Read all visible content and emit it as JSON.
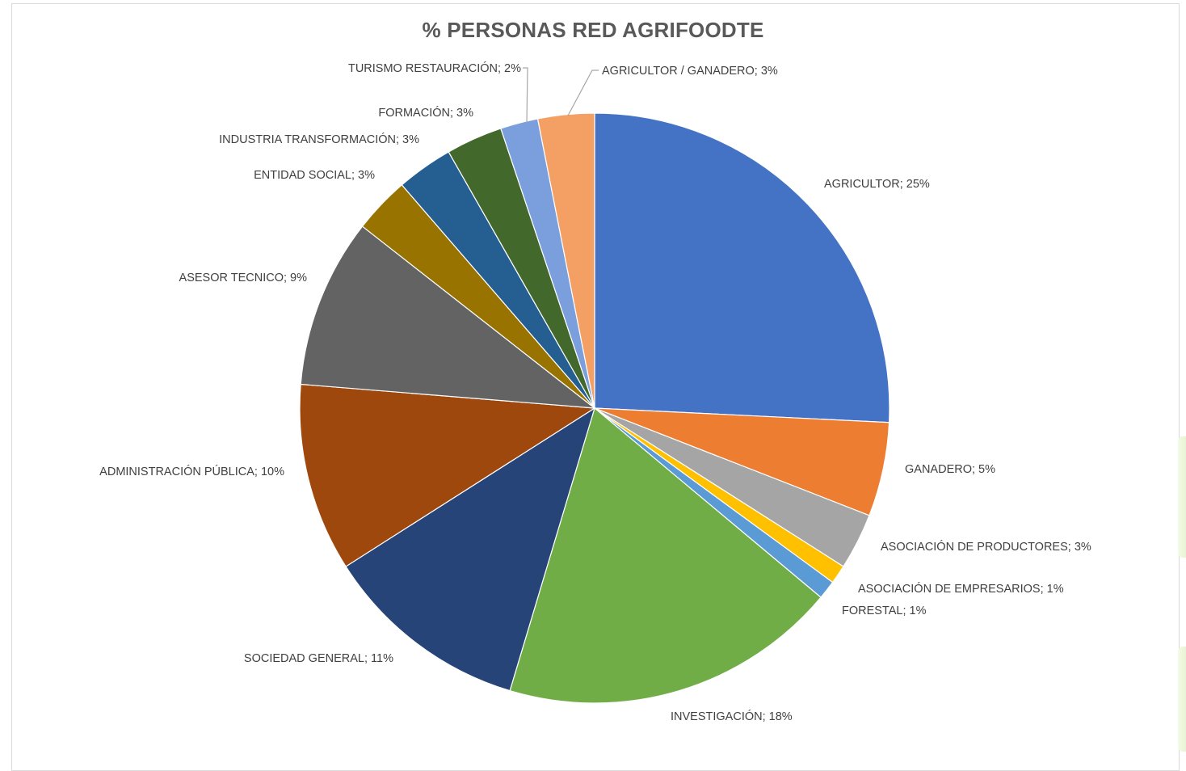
{
  "colors": {
    "background": "#ffffff",
    "frame_border": "#d9d9d9",
    "title_color": "#595959",
    "label_color": "#404040",
    "leader_color": "#a6a6a6"
  },
  "chart_data": {
    "type": "pie",
    "title": "% PERSONAS RED AGRIFOODTE",
    "label_format": "{name}; {value}%",
    "slices": [
      {
        "name": "AGRICULTOR",
        "value": 25,
        "label": "AGRICULTOR; 25%",
        "color": "#4472c4"
      },
      {
        "name": "GANADERO",
        "value": 5,
        "label": "GANADERO; 5%",
        "color": "#ed7d31"
      },
      {
        "name": "ASOCIACIÓN DE PRODUCTORES",
        "value": 3,
        "label": "ASOCIACIÓN DE PRODUCTORES; 3%",
        "color": "#a5a5a5"
      },
      {
        "name": "ASOCIACIÓN DE EMPRESARIOS",
        "value": 1,
        "label": "ASOCIACIÓN DE EMPRESARIOS; 1%",
        "color": "#ffc000"
      },
      {
        "name": "FORESTAL",
        "value": 1,
        "label": "FORESTAL; 1%",
        "color": "#5b9bd5"
      },
      {
        "name": "INVESTIGACIÓN",
        "value": 18,
        "label": "INVESTIGACIÓN; 18%",
        "color": "#70ad47"
      },
      {
        "name": "SOCIEDAD GENERAL",
        "value": 11,
        "label": "SOCIEDAD GENERAL; 11%",
        "color": "#264478"
      },
      {
        "name": "ADMINISTRACIÓN PÚBLICA",
        "value": 10,
        "label": "ADMINISTRACIÓN PÚBLICA; 10%",
        "color": "#9e480e"
      },
      {
        "name": "ASESOR TECNICO",
        "value": 9,
        "label": "ASESOR TECNICO; 9%",
        "color": "#636363"
      },
      {
        "name": "ENTIDAD SOCIAL",
        "value": 3,
        "label": "ENTIDAD SOCIAL; 3%",
        "color": "#997300"
      },
      {
        "name": "INDUSTRIA TRANSFORMACIÓN",
        "value": 3,
        "label": "INDUSTRIA TRANSFORMACIÓN; 3%",
        "color": "#255e91"
      },
      {
        "name": "FORMACIÓN",
        "value": 3,
        "label": "FORMACIÓN; 3%",
        "color": "#43682b"
      },
      {
        "name": "TURISMO RESTAURACIÓN",
        "value": 2,
        "label": "TURISMO RESTAURACIÓN; 2%",
        "color": "#7a9fdc"
      },
      {
        "name": "AGRICULTOR / GANADERO",
        "value": 3,
        "label": "AGRICULTOR / GANADERO; 3%",
        "color": "#f4a065"
      }
    ]
  }
}
